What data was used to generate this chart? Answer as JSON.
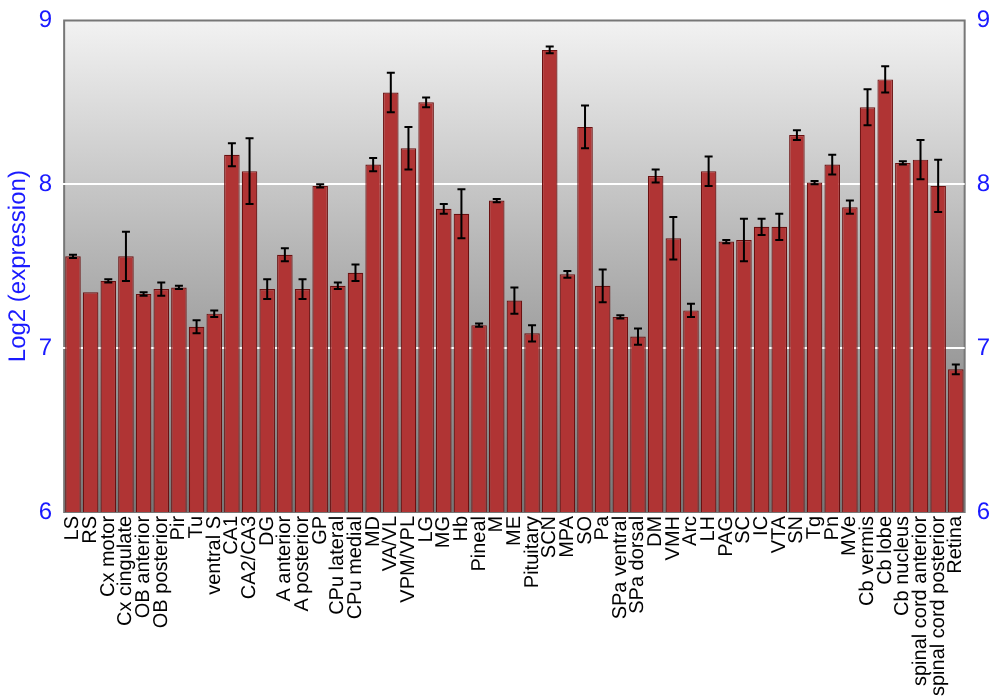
{
  "chart_data": {
    "type": "bar",
    "ylabel": "Log2 (expression)",
    "categories": [
      "LS",
      "RS",
      "Cx motor",
      "Cx cingulate",
      "OB anterior",
      "OB posterior",
      "Pir",
      "Tu",
      "ventral S",
      "CA1",
      "CA2/CA3",
      "DG",
      "A anterior",
      "A posterior",
      "GP",
      "CPu lateral",
      "CPu medial",
      "MD",
      "VA/VL",
      "VPM/VPL",
      "LG",
      "MG",
      "Hb",
      "Pineal",
      "M",
      "ME",
      "Pituitary",
      "SCN",
      "MPA",
      "SO",
      "Pa",
      "SPa ventral",
      "SPa dorsal",
      "DM",
      "VMH",
      "Arc",
      "LH",
      "PAG",
      "SC",
      "IC",
      "VTA",
      "SN",
      "Tg",
      "Pn",
      "MVe",
      "Cb vermis",
      "Cb lobe",
      "Cb nucleus",
      "spinal cord anterior",
      "spinal cord posterior",
      "Retina"
    ],
    "values": [
      7.56,
      7.34,
      7.41,
      7.56,
      7.33,
      7.36,
      7.37,
      7.13,
      7.21,
      8.18,
      8.08,
      7.36,
      7.57,
      7.36,
      7.99,
      7.38,
      7.46,
      8.12,
      8.56,
      8.22,
      8.5,
      7.85,
      7.82,
      7.14,
      7.9,
      7.29,
      7.09,
      8.82,
      7.45,
      8.35,
      7.38,
      7.19,
      7.07,
      8.05,
      7.67,
      7.23,
      8.08,
      7.65,
      7.66,
      7.74,
      7.74,
      8.3,
      8.01,
      8.12,
      7.86,
      8.47,
      8.64,
      8.13,
      8.15,
      7.99,
      6.87
    ],
    "errors": [
      0.01,
      null,
      0.01,
      0.15,
      0.01,
      0.04,
      0.01,
      0.04,
      0.02,
      0.07,
      0.2,
      0.06,
      0.04,
      0.06,
      0.01,
      0.02,
      0.05,
      0.04,
      0.12,
      0.13,
      0.03,
      0.03,
      0.15,
      0.01,
      0.01,
      0.08,
      0.05,
      0.02,
      0.02,
      0.13,
      0.1,
      0.01,
      0.05,
      0.04,
      0.13,
      0.04,
      0.09,
      0.01,
      0.13,
      0.05,
      0.08,
      0.03,
      0.01,
      0.06,
      0.04,
      0.11,
      0.08,
      0.01,
      0.12,
      0.16,
      0.03
    ],
    "color": "#b03434",
    "ylim": [
      6,
      9
    ],
    "yticks": [
      6,
      7,
      8,
      9
    ],
    "y2lim": [
      6,
      9
    ],
    "y2ticks": [
      6,
      7,
      8,
      9
    ],
    "grid": "y",
    "legend": false
  }
}
